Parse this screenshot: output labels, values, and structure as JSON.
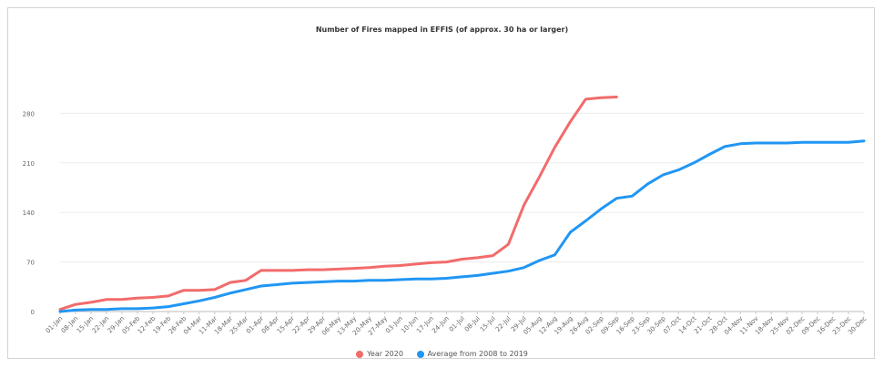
{
  "chart_data": {
    "type": "line",
    "title": "Number of Fires mapped in EFFIS (of approx. 30 ha or larger)",
    "xlabel": "",
    "ylabel": "",
    "ylim": [
      0,
      350
    ],
    "yticks": [
      0,
      70,
      140,
      210,
      280
    ],
    "ytick_labels": [
      "0",
      "70",
      "140",
      "210",
      "280"
    ],
    "grid": true,
    "legend_position": "bottom",
    "x_labels": [
      "01-Jan",
      "08-Jan",
      "15-Jan",
      "22-Jan",
      "29-Jan",
      "05-Feb",
      "12-Feb",
      "19-Feb",
      "26-Feb",
      "04-Mar",
      "11-Mar",
      "18-Mar",
      "25-Mar",
      "01-Apr",
      "08-Apr",
      "15-Apr",
      "22-Apr",
      "29-Apr",
      "06-May",
      "13-May",
      "20-May",
      "27-May",
      "03-Jun",
      "10-Jun",
      "17-Jun",
      "24-Jun",
      "01-Jul",
      "08-Jul",
      "15-Jul",
      "22-Jul",
      "29-Jul",
      "05-Aug",
      "12-Aug",
      "19-Aug",
      "26-Aug",
      "02-Sep",
      "09-Sep",
      "16-Sep",
      "23-Sep",
      "30-Sep",
      "07-Oct",
      "14-Oct",
      "21-Oct",
      "28-Oct",
      "04-Nov",
      "11-Nov",
      "18-Nov",
      "25-Nov",
      "02-Dec",
      "09-Dec",
      "16-Dec",
      "23-Dec",
      "30-Dec"
    ],
    "series": [
      {
        "name": "Year 2020",
        "color": "#f26b6b",
        "points": [
          [
            0,
            3
          ],
          [
            1,
            10
          ],
          [
            2,
            13
          ],
          [
            3,
            17
          ],
          [
            4,
            17
          ],
          [
            5,
            19
          ],
          [
            6,
            20
          ],
          [
            7,
            22
          ],
          [
            8,
            30
          ],
          [
            9,
            30
          ],
          [
            10,
            31
          ],
          [
            11,
            41
          ],
          [
            12,
            44
          ],
          [
            13,
            58
          ],
          [
            14,
            58
          ],
          [
            15,
            58
          ],
          [
            16,
            59
          ],
          [
            17,
            59
          ],
          [
            18,
            60
          ],
          [
            19,
            61
          ],
          [
            20,
            62
          ],
          [
            21,
            64
          ],
          [
            22,
            65
          ],
          [
            23,
            67
          ],
          [
            24,
            69
          ],
          [
            25,
            70
          ],
          [
            26,
            74
          ],
          [
            27,
            76
          ],
          [
            28,
            79
          ],
          [
            29,
            95
          ],
          [
            30,
            150
          ],
          [
            31,
            190
          ],
          [
            32,
            232
          ],
          [
            33,
            268
          ],
          [
            34,
            300
          ],
          [
            35,
            302
          ],
          [
            36,
            303
          ]
        ]
      },
      {
        "name": "Average from 2008 to 2019",
        "color": "#2196f3",
        "points": [
          [
            0,
            0
          ],
          [
            1,
            2
          ],
          [
            2,
            3
          ],
          [
            3,
            3
          ],
          [
            4,
            4
          ],
          [
            5,
            4
          ],
          [
            6,
            5
          ],
          [
            7,
            7
          ],
          [
            8,
            11
          ],
          [
            9,
            15
          ],
          [
            10,
            20
          ],
          [
            11,
            26
          ],
          [
            12,
            31
          ],
          [
            13,
            36
          ],
          [
            14,
            38
          ],
          [
            15,
            40
          ],
          [
            16,
            41
          ],
          [
            17,
            42
          ],
          [
            18,
            43
          ],
          [
            19,
            43
          ],
          [
            20,
            44
          ],
          [
            21,
            44
          ],
          [
            22,
            45
          ],
          [
            23,
            46
          ],
          [
            24,
            46
          ],
          [
            25,
            47
          ],
          [
            26,
            49
          ],
          [
            27,
            51
          ],
          [
            28,
            54
          ],
          [
            29,
            57
          ],
          [
            30,
            62
          ],
          [
            31,
            72
          ],
          [
            32,
            80
          ],
          [
            33,
            112
          ],
          [
            34,
            128
          ],
          [
            35,
            145
          ],
          [
            36,
            160
          ],
          [
            37,
            163
          ],
          [
            38,
            180
          ],
          [
            39,
            193
          ],
          [
            40,
            200
          ],
          [
            41,
            210
          ],
          [
            42,
            222
          ],
          [
            43,
            233
          ],
          [
            44,
            237
          ],
          [
            45,
            238
          ],
          [
            46,
            238
          ],
          [
            47,
            238
          ],
          [
            48,
            239
          ],
          [
            49,
            239
          ],
          [
            50,
            239
          ],
          [
            51,
            239
          ],
          [
            52,
            241
          ]
        ]
      }
    ]
  }
}
